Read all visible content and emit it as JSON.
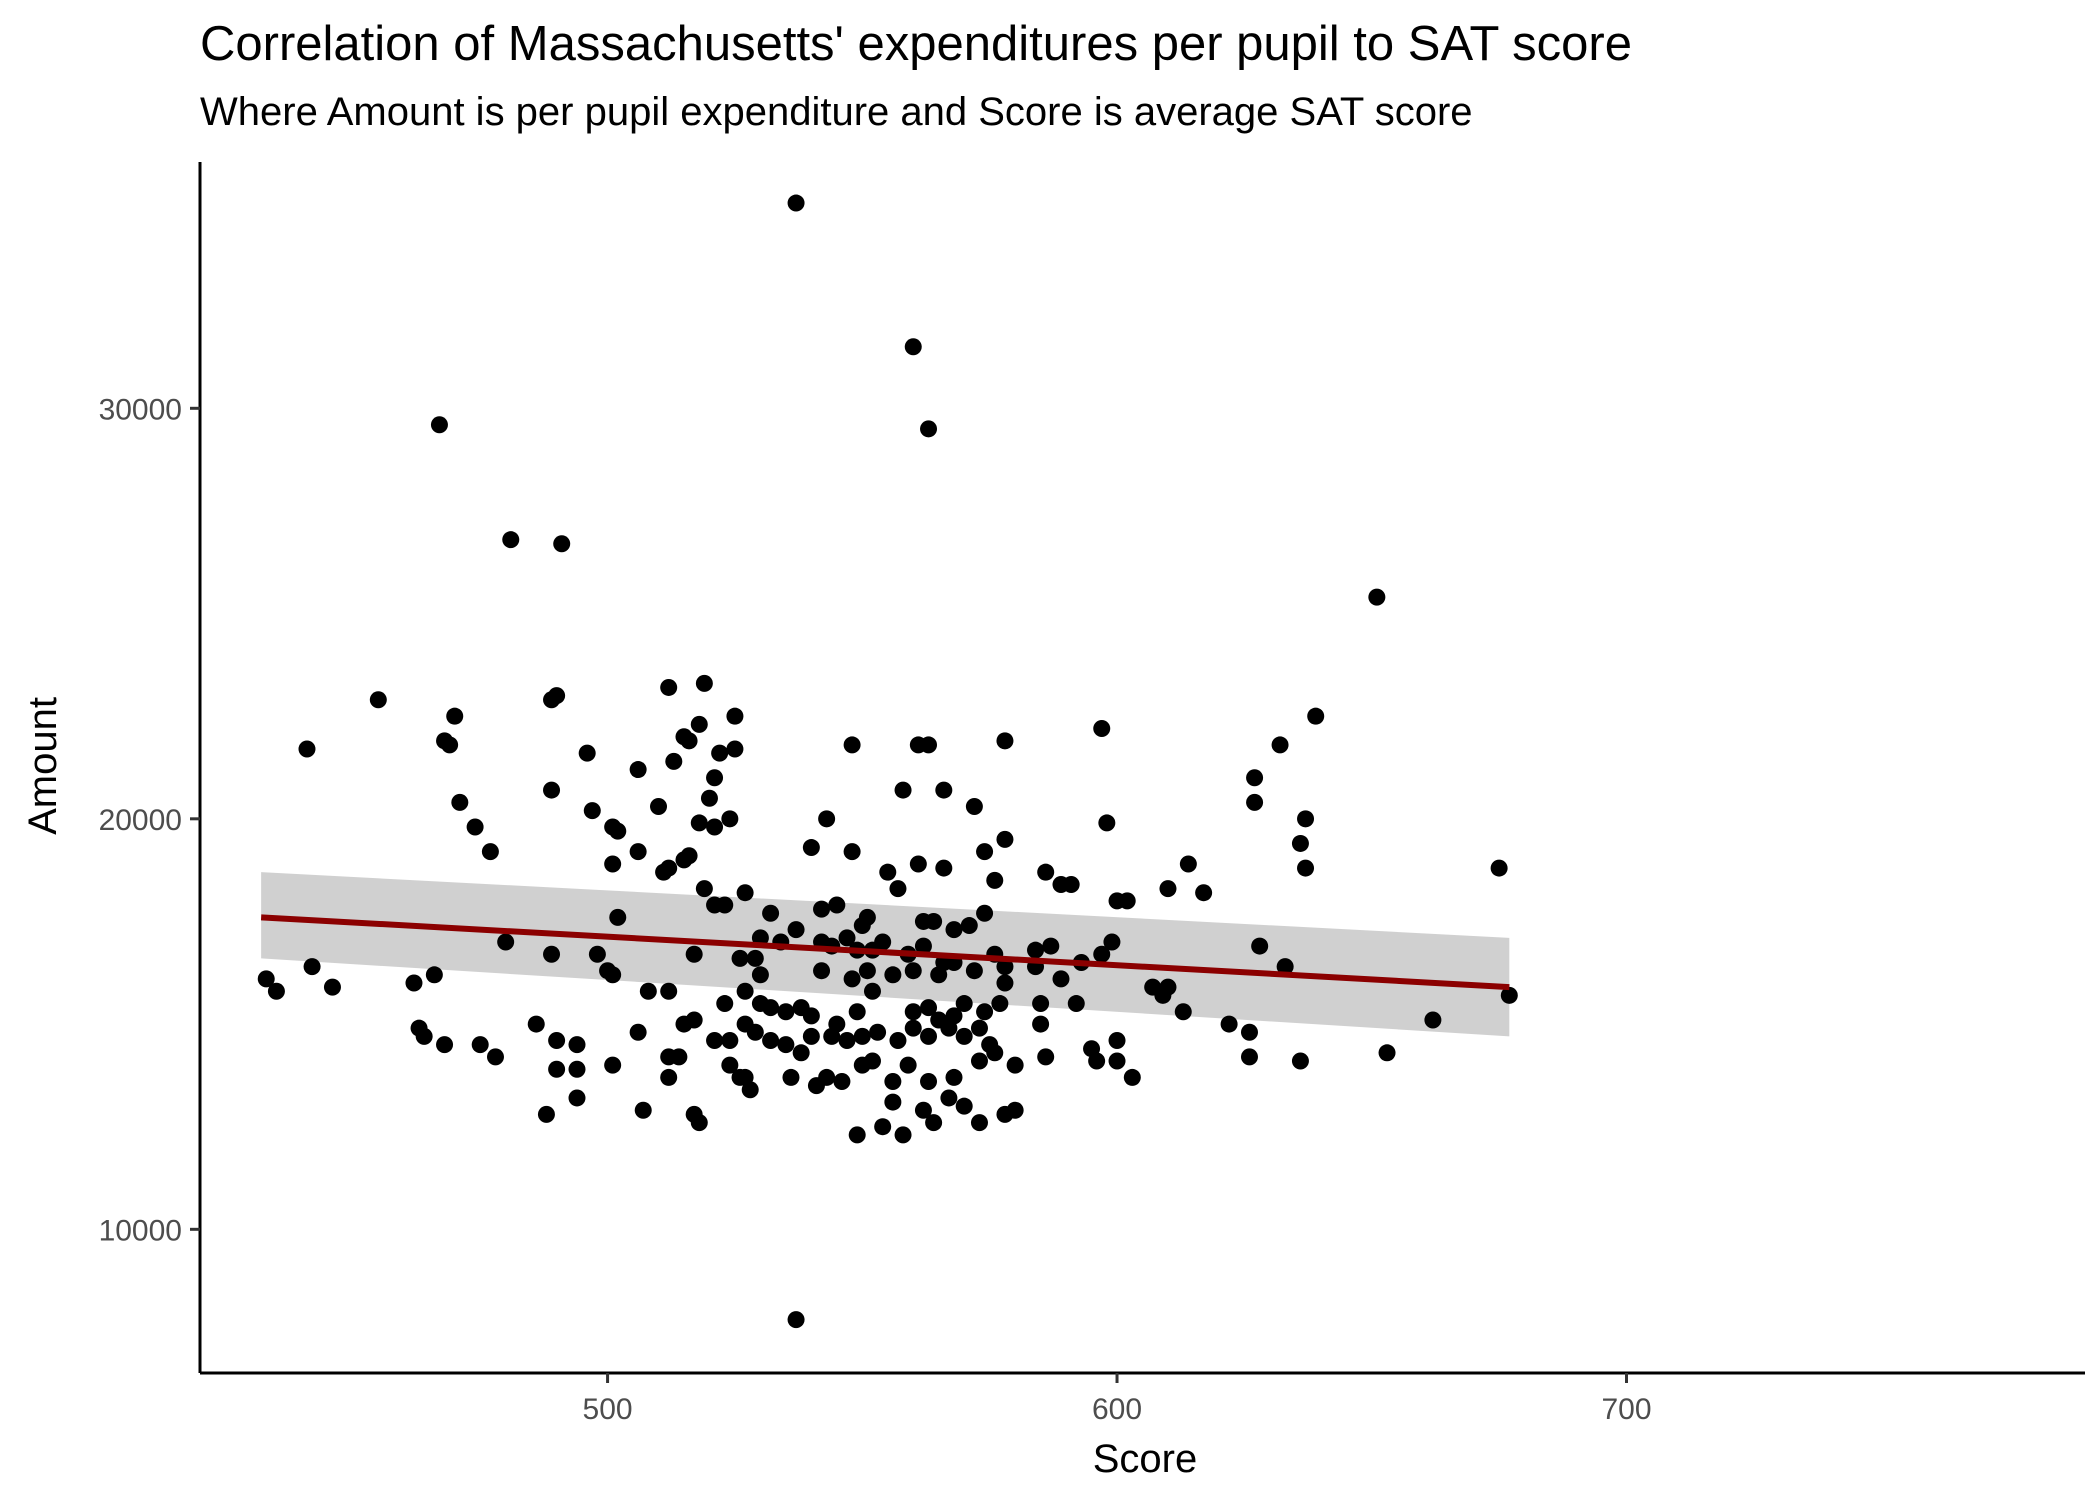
{
  "chart_data": {
    "type": "scatter",
    "title": "Correlation of Massachusetts' expenditures per pupil to SAT score",
    "subtitle": "Where Amount is per pupil expenditure and Score is average SAT score",
    "xlabel": "Score",
    "ylabel": "Amount",
    "xlim": [
      420,
      790
    ],
    "ylim": [
      6500,
      36000
    ],
    "xticks": [
      500,
      600,
      700
    ],
    "yticks": [
      10000,
      20000,
      30000
    ],
    "grid": false,
    "colors": {
      "points": "#000000",
      "trend_line": "#8b0000",
      "confidence_band": "#c8c8c8"
    },
    "trend_line": {
      "method": "linear",
      "x": [
        432,
        677
      ],
      "y": [
        17600,
        15900
      ]
    },
    "confidence_band": {
      "x": [
        432,
        677
      ],
      "lower": [
        16600,
        14700
      ],
      "upper": [
        18700,
        17100
      ]
    },
    "points": [
      [
        537,
        35000
      ],
      [
        560,
        31500
      ],
      [
        563,
        29500
      ],
      [
        467,
        29600
      ],
      [
        481,
        26800
      ],
      [
        491,
        26700
      ],
      [
        651,
        25400
      ],
      [
        455,
        22900
      ],
      [
        470,
        22500
      ],
      [
        468,
        21900
      ],
      [
        469,
        21800
      ],
      [
        441,
        21700
      ],
      [
        489,
        22900
      ],
      [
        490,
        23000
      ],
      [
        512,
        23200
      ],
      [
        519,
        23300
      ],
      [
        518,
        22300
      ],
      [
        525,
        22500
      ],
      [
        522,
        21600
      ],
      [
        525,
        21700
      ],
      [
        513,
        21400
      ],
      [
        515,
        22000
      ],
      [
        516,
        21900
      ],
      [
        521,
        21000
      ],
      [
        520,
        20500
      ],
      [
        548,
        21800
      ],
      [
        561,
        21800
      ],
      [
        563,
        21800
      ],
      [
        578,
        21900
      ],
      [
        597,
        22200
      ],
      [
        627,
        21000
      ],
      [
        632,
        21800
      ],
      [
        639,
        22500
      ],
      [
        471,
        20400
      ],
      [
        474,
        19800
      ],
      [
        477,
        19200
      ],
      [
        489,
        20700
      ],
      [
        496,
        21600
      ],
      [
        497,
        20200
      ],
      [
        501,
        19800
      ],
      [
        506,
        21200
      ],
      [
        510,
        20300
      ],
      [
        502,
        19700
      ],
      [
        506,
        19200
      ],
      [
        511,
        18700
      ],
      [
        512,
        18800
      ],
      [
        515,
        19000
      ],
      [
        516,
        19100
      ],
      [
        518,
        19900
      ],
      [
        521,
        19800
      ],
      [
        524,
        20000
      ],
      [
        540,
        19300
      ],
      [
        543,
        20000
      ],
      [
        548,
        19200
      ],
      [
        558,
        20700
      ],
      [
        566,
        20700
      ],
      [
        572,
        20300
      ],
      [
        574,
        19200
      ],
      [
        578,
        19500
      ],
      [
        598,
        19900
      ],
      [
        627,
        20400
      ],
      [
        636,
        19400
      ],
      [
        637,
        20000
      ],
      [
        637,
        18800
      ],
      [
        614,
        18900
      ],
      [
        617,
        18200
      ],
      [
        610,
        18300
      ],
      [
        675,
        18800
      ],
      [
        586,
        18700
      ],
      [
        589,
        18400
      ],
      [
        591,
        18400
      ],
      [
        600,
        18000
      ],
      [
        602,
        18000
      ],
      [
        555,
        18700
      ],
      [
        557,
        18300
      ],
      [
        561,
        18900
      ],
      [
        566,
        18800
      ],
      [
        576,
        18500
      ],
      [
        519,
        18300
      ],
      [
        521,
        17900
      ],
      [
        523,
        17900
      ],
      [
        527,
        18200
      ],
      [
        501,
        18900
      ],
      [
        502,
        17600
      ],
      [
        532,
        17700
      ],
      [
        542,
        17800
      ],
      [
        545,
        17900
      ],
      [
        551,
        17600
      ],
      [
        550,
        17400
      ],
      [
        562,
        17500
      ],
      [
        564,
        17500
      ],
      [
        568,
        17300
      ],
      [
        571,
        17400
      ],
      [
        574,
        17700
      ],
      [
        480,
        17000
      ],
      [
        489,
        16700
      ],
      [
        498,
        16700
      ],
      [
        500,
        16300
      ],
      [
        501,
        16200
      ],
      [
        517,
        16700
      ],
      [
        526,
        16600
      ],
      [
        529,
        16600
      ],
      [
        530,
        17100
      ],
      [
        534,
        17000
      ],
      [
        537,
        17300
      ],
      [
        542,
        17000
      ],
      [
        544,
        16900
      ],
      [
        547,
        17100
      ],
      [
        549,
        16800
      ],
      [
        552,
        16800
      ],
      [
        554,
        17000
      ],
      [
        559,
        16700
      ],
      [
        562,
        16900
      ],
      [
        566,
        16500
      ],
      [
        568,
        16500
      ],
      [
        576,
        16700
      ],
      [
        578,
        16400
      ],
      [
        584,
        16800
      ],
      [
        587,
        16900
      ],
      [
        584,
        16400
      ],
      [
        593,
        16500
      ],
      [
        597,
        16700
      ],
      [
        599,
        17000
      ],
      [
        628,
        16900
      ],
      [
        433,
        16100
      ],
      [
        435,
        15800
      ],
      [
        442,
        16400
      ],
      [
        446,
        15900
      ],
      [
        462,
        16000
      ],
      [
        466,
        16200
      ],
      [
        530,
        16200
      ],
      [
        542,
        16300
      ],
      [
        548,
        16100
      ],
      [
        551,
        16300
      ],
      [
        556,
        16200
      ],
      [
        560,
        16300
      ],
      [
        565,
        16200
      ],
      [
        572,
        16300
      ],
      [
        578,
        16000
      ],
      [
        589,
        16100
      ],
      [
        607,
        15900
      ],
      [
        609,
        15700
      ],
      [
        610,
        15900
      ],
      [
        613,
        15300
      ],
      [
        633,
        16400
      ],
      [
        677,
        15700
      ],
      [
        508,
        15800
      ],
      [
        512,
        15800
      ],
      [
        515,
        15000
      ],
      [
        517,
        15100
      ],
      [
        523,
        15500
      ],
      [
        527,
        15800
      ],
      [
        530,
        15500
      ],
      [
        532,
        15400
      ],
      [
        535,
        15300
      ],
      [
        538,
        15400
      ],
      [
        540,
        15200
      ],
      [
        545,
        15000
      ],
      [
        549,
        15300
      ],
      [
        552,
        15800
      ],
      [
        560,
        15300
      ],
      [
        563,
        15400
      ],
      [
        565,
        15100
      ],
      [
        568,
        15200
      ],
      [
        570,
        15500
      ],
      [
        574,
        15300
      ],
      [
        577,
        15500
      ],
      [
        585,
        15500
      ],
      [
        592,
        15500
      ],
      [
        463,
        14900
      ],
      [
        464,
        14700
      ],
      [
        468,
        14500
      ],
      [
        475,
        14500
      ],
      [
        478,
        14200
      ],
      [
        486,
        15000
      ],
      [
        490,
        14600
      ],
      [
        494,
        14500
      ],
      [
        506,
        14800
      ],
      [
        512,
        14200
      ],
      [
        514,
        14200
      ],
      [
        521,
        14600
      ],
      [
        524,
        14600
      ],
      [
        527,
        15000
      ],
      [
        529,
        14800
      ],
      [
        532,
        14600
      ],
      [
        535,
        14500
      ],
      [
        540,
        14700
      ],
      [
        544,
        14700
      ],
      [
        547,
        14600
      ],
      [
        550,
        14700
      ],
      [
        553,
        14800
      ],
      [
        557,
        14600
      ],
      [
        560,
        14900
      ],
      [
        563,
        14700
      ],
      [
        567,
        14900
      ],
      [
        570,
        14700
      ],
      [
        573,
        14900
      ],
      [
        575,
        14500
      ],
      [
        585,
        15000
      ],
      [
        595,
        14400
      ],
      [
        600,
        14600
      ],
      [
        622,
        15000
      ],
      [
        626,
        14800
      ],
      [
        490,
        13900
      ],
      [
        494,
        13900
      ],
      [
        501,
        14000
      ],
      [
        512,
        13700
      ],
      [
        524,
        14000
      ],
      [
        526,
        13700
      ],
      [
        528,
        13400
      ],
      [
        536,
        13700
      ],
      [
        541,
        13500
      ],
      [
        543,
        13700
      ],
      [
        546,
        13600
      ],
      [
        550,
        14000
      ],
      [
        552,
        14100
      ],
      [
        556,
        13600
      ],
      [
        559,
        14000
      ],
      [
        563,
        13600
      ],
      [
        568,
        13700
      ],
      [
        573,
        14100
      ],
      [
        576,
        14300
      ],
      [
        580,
        14000
      ],
      [
        586,
        14200
      ],
      [
        596,
        14100
      ],
      [
        600,
        14100
      ],
      [
        603,
        13700
      ],
      [
        626,
        14200
      ],
      [
        636,
        14100
      ],
      [
        653,
        14300
      ],
      [
        662,
        15100
      ],
      [
        488,
        12800
      ],
      [
        494,
        13200
      ],
      [
        507,
        12900
      ],
      [
        517,
        12800
      ],
      [
        518,
        12600
      ],
      [
        527,
        13700
      ],
      [
        538,
        14300
      ],
      [
        549,
        12300
      ],
      [
        554,
        12500
      ],
      [
        556,
        13100
      ],
      [
        558,
        12300
      ],
      [
        562,
        12900
      ],
      [
        564,
        12600
      ],
      [
        567,
        13200
      ],
      [
        570,
        13000
      ],
      [
        573,
        12600
      ],
      [
        578,
        12800
      ],
      [
        580,
        12900
      ],
      [
        537,
        7800
      ]
    ]
  }
}
